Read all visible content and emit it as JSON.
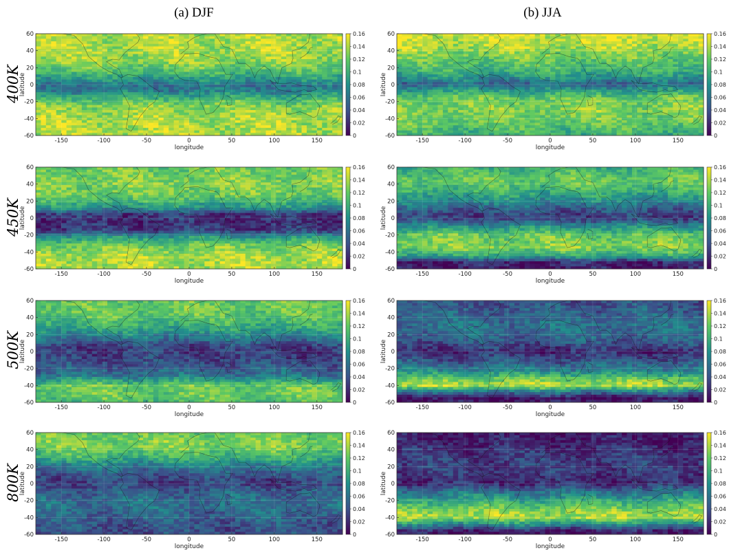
{
  "figure": {
    "columns": [
      {
        "label": "(a) DJF"
      },
      {
        "label": "(b) JJA"
      }
    ],
    "rows": [
      {
        "label": "400K"
      },
      {
        "label": "450K"
      },
      {
        "label": "500K"
      },
      {
        "label": "800K"
      }
    ]
  },
  "chart_data": {
    "type": "heatmap",
    "xlabel": "longitude",
    "ylabel": "latitude",
    "xlim": [
      -180,
      180
    ],
    "ylim": [
      -60,
      60
    ],
    "xticks": [
      -150,
      -100,
      -50,
      0,
      50,
      100,
      150
    ],
    "yticks": [
      60,
      40,
      20,
      0,
      -20,
      -40,
      -60
    ],
    "colorbar": {
      "min": 0,
      "max": 0.16,
      "ticks": [
        0.16,
        0.14,
        0.12,
        0.1,
        0.08,
        0.06,
        0.04,
        0.02,
        0
      ],
      "colormap": "viridis"
    },
    "overlay": "coastlines",
    "grid": true,
    "panels": [
      {
        "season": "DJF",
        "level": "400K",
        "lat_profile": [
          [
            60,
            0.14
          ],
          [
            40,
            0.14
          ],
          [
            25,
            0.13
          ],
          [
            15,
            0.11
          ],
          [
            5,
            0.08
          ],
          [
            -2,
            0.06
          ],
          [
            -8,
            0.07
          ],
          [
            -15,
            0.1
          ],
          [
            -25,
            0.13
          ],
          [
            -40,
            0.14
          ],
          [
            -60,
            0.14
          ]
        ]
      },
      {
        "season": "JJA",
        "level": "400K",
        "lat_profile": [
          [
            60,
            0.15
          ],
          [
            45,
            0.14
          ],
          [
            30,
            0.12
          ],
          [
            15,
            0.1
          ],
          [
            5,
            0.07
          ],
          [
            0,
            0.05
          ],
          [
            -5,
            0.08
          ],
          [
            -15,
            0.12
          ],
          [
            -30,
            0.13
          ],
          [
            -45,
            0.12
          ],
          [
            -60,
            0.1
          ]
        ]
      },
      {
        "season": "DJF",
        "level": "450K",
        "lat_profile": [
          [
            60,
            0.12
          ],
          [
            40,
            0.13
          ],
          [
            25,
            0.12
          ],
          [
            12,
            0.08
          ],
          [
            5,
            0.03
          ],
          [
            -5,
            0.02
          ],
          [
            -15,
            0.03
          ],
          [
            -22,
            0.08
          ],
          [
            -30,
            0.12
          ],
          [
            -45,
            0.14
          ],
          [
            -60,
            0.14
          ]
        ]
      },
      {
        "season": "JJA",
        "level": "450K",
        "lat_profile": [
          [
            60,
            0.1
          ],
          [
            45,
            0.12
          ],
          [
            30,
            0.1
          ],
          [
            15,
            0.06
          ],
          [
            8,
            0.04
          ],
          [
            0,
            0.03
          ],
          [
            -8,
            0.07
          ],
          [
            -20,
            0.12
          ],
          [
            -35,
            0.13
          ],
          [
            -45,
            0.09
          ],
          [
            -52,
            0.02
          ],
          [
            -60,
            0.01
          ]
        ]
      },
      {
        "season": "DJF",
        "level": "500K",
        "lat_profile": [
          [
            60,
            0.12
          ],
          [
            45,
            0.12
          ],
          [
            30,
            0.1
          ],
          [
            15,
            0.06
          ],
          [
            5,
            0.03
          ],
          [
            -5,
            0.03
          ],
          [
            -15,
            0.04
          ],
          [
            -28,
            0.06
          ],
          [
            -40,
            0.12
          ],
          [
            -52,
            0.12
          ],
          [
            -60,
            0.11
          ]
        ]
      },
      {
        "season": "JJA",
        "level": "500K",
        "lat_profile": [
          [
            60,
            0.04
          ],
          [
            45,
            0.05
          ],
          [
            30,
            0.06
          ],
          [
            15,
            0.05
          ],
          [
            5,
            0.03
          ],
          [
            0,
            0.02
          ],
          [
            -10,
            0.04
          ],
          [
            -22,
            0.07
          ],
          [
            -32,
            0.12
          ],
          [
            -40,
            0.14
          ],
          [
            -48,
            0.06
          ],
          [
            -55,
            0.01
          ],
          [
            -60,
            0.01
          ]
        ]
      },
      {
        "season": "DJF",
        "level": "800K",
        "lat_profile": [
          [
            60,
            0.12
          ],
          [
            45,
            0.13
          ],
          [
            30,
            0.1
          ],
          [
            18,
            0.06
          ],
          [
            8,
            0.04
          ],
          [
            0,
            0.03
          ],
          [
            -10,
            0.05
          ],
          [
            -25,
            0.06
          ],
          [
            -40,
            0.05
          ],
          [
            -52,
            0.04
          ],
          [
            -60,
            0.04
          ]
        ]
      },
      {
        "season": "JJA",
        "level": "800K",
        "lat_profile": [
          [
            60,
            0.01
          ],
          [
            45,
            0.02
          ],
          [
            30,
            0.03
          ],
          [
            15,
            0.03
          ],
          [
            5,
            0.02
          ],
          [
            0,
            0.02
          ],
          [
            -10,
            0.06
          ],
          [
            -22,
            0.1
          ],
          [
            -32,
            0.13
          ],
          [
            -40,
            0.14
          ],
          [
            -48,
            0.08
          ],
          [
            -55,
            0.02
          ],
          [
            -60,
            0.01
          ]
        ]
      }
    ]
  }
}
